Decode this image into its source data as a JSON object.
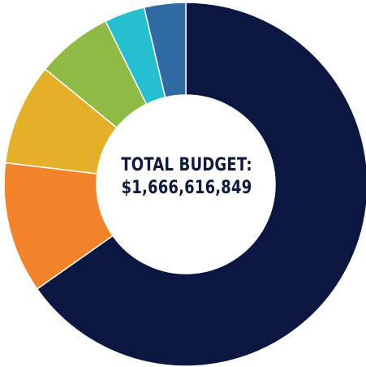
{
  "chart_data": {
    "type": "pie",
    "title": "",
    "center_text": {
      "line1": "TOTAL BUDGET:",
      "line2": "$1,666,616,849"
    },
    "slices": [
      {
        "label": "",
        "value": 67.2,
        "color": "#0b1740"
      },
      {
        "label": "",
        "value": 12.0,
        "color": "#f2832a"
      },
      {
        "label": "",
        "value": 9.3,
        "color": "#e4b02a"
      },
      {
        "label": "",
        "value": 7.0,
        "color": "#8fba45"
      },
      {
        "label": "",
        "value": 3.7,
        "color": "#26bfcf"
      },
      {
        "label": "",
        "value": 3.8,
        "color": "#2f6aa3"
      }
    ],
    "donut": true,
    "legend": "none",
    "grid": false
  }
}
